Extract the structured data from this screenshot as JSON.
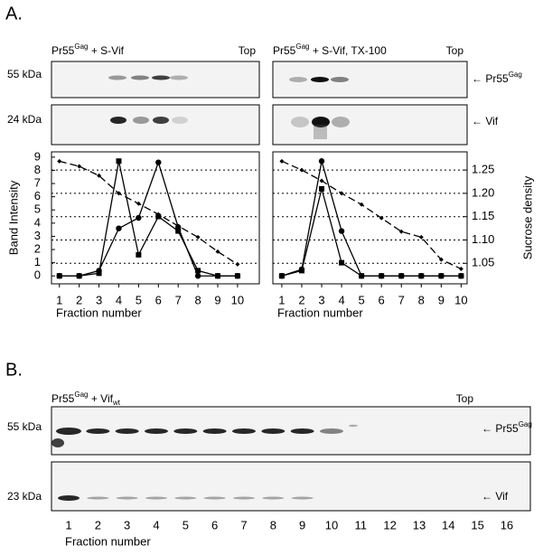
{
  "panel_a_label": "A.",
  "panel_b_label": "B.",
  "a_blots": [
    {
      "title": {
        "main": "Pr55",
        "sup": "Gag",
        "rest": " + S-Vif"
      },
      "top": "Top"
    },
    {
      "title": {
        "main": "Pr55",
        "sup": "Gag",
        "rest": " + S-Vif, TX-100"
      },
      "top": "Top"
    }
  ],
  "a_rows": [
    {
      "marker": "55 kDa",
      "arrow": "← Pr55",
      "arrow_sup": "Gag"
    },
    {
      "marker": "24 kDa",
      "arrow": "← Vif"
    }
  ],
  "chart_data": [
    {
      "type": "line",
      "x": [
        1,
        2,
        3,
        4,
        5,
        6,
        7,
        8,
        9,
        10
      ],
      "xlim": [
        0.6,
        11.1
      ],
      "xticks": [
        1,
        2,
        3,
        4,
        5,
        6,
        7,
        8,
        9,
        10
      ],
      "xlabel": "Fraction number",
      "ylabel": "Band Intensity",
      "ylim": [
        -0.6,
        9.4
      ],
      "yticks": [
        0,
        1,
        2,
        3,
        4,
        5,
        6,
        7,
        8,
        9
      ],
      "y2lim": [
        1.006,
        1.289
      ],
      "y2ticks": [
        1.05,
        {
          "value": 1.1,
          "label": "1.10"
        },
        1.15,
        {
          "value": 1.2,
          "label": "1.20"
        },
        1.25
      ],
      "y2_tick_labels": false,
      "grid": true,
      "series": [
        {
          "color": "#000000",
          "marker": "square",
          "values": [
            0,
            0,
            0.2,
            8.7,
            1.6,
            4.5,
            3.4,
            0.4,
            0,
            0
          ]
        },
        {
          "color": "#000000",
          "marker": "circle",
          "values": [
            0,
            0,
            0.4,
            3.6,
            4.4,
            8.6,
            3.7,
            0,
            0,
            0
          ]
        },
        {
          "color": "#000000",
          "marker": "diamond",
          "dashed": true,
          "axis": "y2",
          "values": [
            1.269,
            1.258,
            1.238,
            1.2,
            1.178,
            1.155,
            1.13,
            1.106,
            1.075,
            1.048
          ]
        }
      ]
    },
    {
      "type": "line",
      "x": [
        1,
        2,
        3,
        4,
        5,
        6,
        7,
        8,
        9,
        10
      ],
      "xlim": [
        0.55,
        10.3
      ],
      "xticks": [
        1,
        2,
        3,
        4,
        5,
        6,
        7,
        8,
        9,
        10
      ],
      "xlabel": "Fraction number",
      "y2label": "Sucrose density",
      "ylim": [
        -0.6,
        9.4
      ],
      "y2lim": [
        1.006,
        1.289
      ],
      "y2ticks": [
        1.05,
        {
          "value": 1.1,
          "label": "1.10"
        },
        1.15,
        {
          "value": 1.2,
          "label": "1.20"
        },
        1.25
      ],
      "y2_tick_labels": true,
      "grid": true,
      "series": [
        {
          "color": "#000000",
          "marker": "circle",
          "values": [
            0,
            0.5,
            8.7,
            3.4,
            0,
            0,
            0,
            0,
            0,
            0
          ]
        },
        {
          "color": "#000000",
          "marker": "square",
          "values": [
            0,
            0.4,
            6.6,
            1.0,
            0,
            0,
            0,
            0,
            0,
            0
          ]
        },
        {
          "color": "#000000",
          "marker": "diamond",
          "dashed": true,
          "axis": "y2",
          "values": [
            1.269,
            1.25,
            1.227,
            1.2,
            1.176,
            1.147,
            1.118,
            1.106,
            1.058,
            1.038
          ]
        }
      ]
    }
  ],
  "b_blot": {
    "title": {
      "main": "Pr55",
      "sup": "Gag",
      "rest": " + Vif",
      "sub": "wt"
    },
    "top": "Top"
  },
  "b_rows": [
    {
      "marker": "55 kDa",
      "arrow": "← Pr55",
      "arrow_sup": "Gag"
    },
    {
      "marker": "23 kDa",
      "arrow": "← Vif"
    }
  ],
  "b_lanes": [
    1,
    2,
    3,
    4,
    5,
    6,
    7,
    8,
    9,
    10,
    11,
    12,
    13,
    14,
    15,
    16
  ],
  "b_xlabel": "Fraction number"
}
